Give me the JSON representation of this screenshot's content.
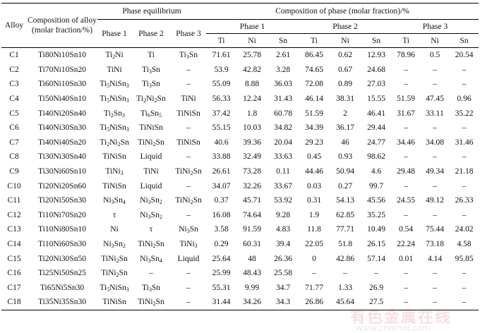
{
  "headers": {
    "alloy": "Alloy",
    "composition_of_alloy": "Composition of alloy (molar fraction/%)",
    "phase_equilibrium": "Phase equilibrium",
    "composition_of_phase": "Composition of phase (molar fraction)/%",
    "phase_1": "Phase 1",
    "phase_2": "Phase 2",
    "phase_3": "Phase 3",
    "ti": "Ti",
    "ni": "Ni",
    "sn": "Sn"
  },
  "rows": [
    {
      "alloy": "C1",
      "comp": "Ti80Ni10Sn10",
      "p1": "Ti2Ni",
      "p2": "Ti",
      "p3": "Ti3Sn",
      "v": [
        "71.61",
        "25.78",
        "2.61",
        "86.45",
        "0.62",
        "12.93",
        "78.96",
        "0.5",
        "20.54"
      ]
    },
    {
      "alloy": "C2",
      "comp": "Ti70Ni10Sn20",
      "p1": "TiNi",
      "p2": "Ti3Sn",
      "p3": "–",
      "v": [
        "53.9",
        "42.82",
        "3.28",
        "74.65",
        "0.67",
        "24.68",
        "–",
        "–",
        "–"
      ]
    },
    {
      "alloy": "C3",
      "comp": "Ti60Ni10Sn30",
      "p1": "Ti5NiSn3",
      "p2": "Ti3Sn",
      "p3": "–",
      "v": [
        "55.09",
        "8.88",
        "36.03",
        "72.08",
        "0.89",
        "27.03",
        "–",
        "–",
        "–"
      ]
    },
    {
      "alloy": "C4",
      "comp": "Ti50Ni40Sn10",
      "p1": "Ti5NiSn3",
      "p2": "Ti2Ni2Sn",
      "p3": "TiNi",
      "v": [
        "56.33",
        "12.24",
        "31.43",
        "46.14",
        "38.31",
        "15.55",
        "51.59",
        "47.45",
        "0.96"
      ]
    },
    {
      "alloy": "C5",
      "comp": "Ti40Ni20Sn40",
      "p1": "Ti2Sn3",
      "p2": "Ti6Sn5",
      "p3": "TiNiSn",
      "v": [
        "37.42",
        "1.8",
        "60.78",
        "51.59",
        "2",
        "46.41",
        "31.67",
        "33.11",
        "35.22"
      ]
    },
    {
      "alloy": "C6",
      "comp": "Ti40Ni30Sn30",
      "p1": "Ti5NiSn3",
      "p2": "TiNiSn",
      "p3": "–",
      "v": [
        "55.15",
        "10.03",
        "34.82",
        "34.39",
        "36.17",
        "29.44",
        "–",
        "–",
        "–"
      ]
    },
    {
      "alloy": "C7",
      "comp": "Ti40Ni40Sn20",
      "p1": "Ti2Ni2Sn",
      "p2": "TiNi2Sn",
      "p3": "TiNiSn",
      "v": [
        "40.6",
        "39.36",
        "20.04",
        "29.23",
        "46",
        "24.77",
        "34.46",
        "34.08",
        "31.46"
      ]
    },
    {
      "alloy": "C8",
      "comp": "Ti30Ni30Sn40",
      "p1": "TiNiSn",
      "p2": "Liquid",
      "p3": "–",
      "v": [
        "33.88",
        "32.49",
        "33.63",
        "0.45",
        "0.93",
        "98.62",
        "–",
        "–",
        "–"
      ]
    },
    {
      "alloy": "C9",
      "comp": "Ti30Ni60Sn10",
      "p1": "TiNi3",
      "p2": "TiNi",
      "p3": "TiNi2Sn",
      "v": [
        "26.61",
        "73.28",
        "0.11",
        "44.46",
        "50.94",
        "4.6",
        "29.48",
        "49.34",
        "21.18"
      ]
    },
    {
      "alloy": "C10",
      "comp": "Ti20Ni20Sn60",
      "p1": "TiNiSn",
      "p2": "Liquid",
      "p3": "–",
      "v": [
        "34.07",
        "32.26",
        "33.67",
        "0.03",
        "0.27",
        "99.7",
        "–",
        "–",
        "–"
      ]
    },
    {
      "alloy": "C11",
      "comp": "Ti20Ni50Sn30",
      "p1": "Ni3Sn4",
      "p2": "Ni3Sn2",
      "p3": "TiNi2Sn",
      "v": [
        "0.37",
        "45.71",
        "53.92",
        "0.31",
        "54.13",
        "45.56",
        "24.55",
        "49.12",
        "26.33"
      ]
    },
    {
      "alloy": "C12",
      "comp": "Ti10Ni70Sn20",
      "p1": "τ",
      "p2": "Ni3Sn2",
      "p3": "–",
      "v": [
        "16.08",
        "74.64",
        "9.28",
        "1.9",
        "62.85",
        "35.25",
        "–",
        "–",
        "–"
      ]
    },
    {
      "alloy": "C13",
      "comp": "Ti10Ni80Sn10",
      "p1": "Ni",
      "p2": "τ",
      "p3": "Ni3Sn",
      "v": [
        "3.58",
        "91.59",
        "4.83",
        "11.8",
        "77.71",
        "10.49",
        "0.54",
        "75.44",
        "24.02"
      ]
    },
    {
      "alloy": "C14",
      "comp": "Ti10Ni60Sn30",
      "p1": "Ni3Sn2",
      "p2": "TiNi2Sn",
      "p3": "TiNi3",
      "v": [
        "0.29",
        "60.31",
        "39.4",
        "22.05",
        "51.8",
        "26.15",
        "22.24",
        "73.18",
        "4.58"
      ]
    },
    {
      "alloy": "C15",
      "comp": "Ti20Ni30Sn50",
      "p1": "TiNi2Sn",
      "p2": "Ni3Sn4",
      "p3": "Liquid",
      "v": [
        "25.64",
        "48",
        "26.36",
        "0",
        "42.86",
        "57.14",
        "0.01",
        "4.14",
        "95.85"
      ]
    },
    {
      "alloy": "C16",
      "comp": "Ti25Ni50Sn25",
      "p1": "TiNi2Sn",
      "p2": "–",
      "p3": "–",
      "v": [
        "25.99",
        "48.43",
        "25.58",
        "–",
        "–",
        "–",
        "–",
        "–",
        "–"
      ]
    },
    {
      "alloy": "C17",
      "comp": "Ti65Ni5Sn30",
      "p1": "Ti5NiSn3",
      "p2": "Ti3Sn",
      "p3": "–",
      "v": [
        "55.31",
        "9.99",
        "34.7",
        "71.77",
        "1.33",
        "26.9",
        "–",
        "–",
        "–"
      ]
    },
    {
      "alloy": "C18",
      "comp": "Ti35Ni35Sn30",
      "p1": "TiNiSn",
      "p2": "TiNi2Sn",
      "p3": "–",
      "v": [
        "31.44",
        "34.26",
        "34.3",
        "26.86",
        "45.64",
        "27.5",
        "–",
        "–",
        "–"
      ]
    }
  ],
  "watermark": {
    "text": "有色金属在线",
    "url": "www.cnnmol.com"
  }
}
